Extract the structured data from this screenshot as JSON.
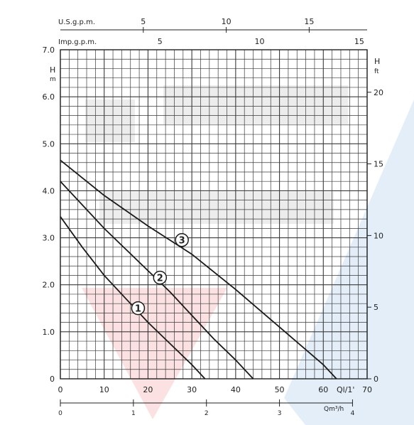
{
  "chart_data": {
    "type": "line",
    "title": "",
    "x_axis": {
      "label": "Ql/1'",
      "min": 0,
      "max": 70,
      "ticks": [
        0,
        10,
        20,
        30,
        40,
        50,
        60,
        70
      ]
    },
    "y_axis_left": {
      "label_top": "H",
      "label_unit": "m",
      "min": 0,
      "max": 7,
      "ticks": [
        "0",
        "1.0",
        "2.0",
        "3.0",
        "4.0",
        "5.0",
        "6.0",
        "7.0"
      ]
    },
    "y_axis_right": {
      "label_top": "H",
      "label_unit": "ft",
      "ticks": [
        0,
        5,
        10,
        15,
        20
      ]
    },
    "top_axis_us": {
      "label": "U.S.g.p.m.",
      "ticks": [
        5,
        10,
        15
      ]
    },
    "top_axis_imp": {
      "label": "Imp.g.p.m.",
      "ticks": [
        5,
        10,
        15
      ]
    },
    "bottom_axis_m3h": {
      "label": "Qm³/h",
      "ticks": [
        0,
        1,
        2,
        3,
        4
      ]
    },
    "grid": true,
    "series": [
      {
        "name": "1",
        "x": [
          0,
          5,
          10,
          15,
          20,
          25,
          30,
          33
        ],
        "y": [
          3.45,
          2.8,
          2.2,
          1.7,
          1.2,
          0.75,
          0.3,
          0.0
        ]
      },
      {
        "name": "2",
        "x": [
          0,
          5,
          10,
          15,
          20,
          25,
          30,
          35,
          40,
          44
        ],
        "y": [
          4.2,
          3.7,
          3.2,
          2.75,
          2.3,
          1.85,
          1.35,
          0.85,
          0.4,
          0.0
        ]
      },
      {
        "name": "3",
        "x": [
          0,
          10,
          20,
          30,
          40,
          50,
          60,
          63
        ],
        "y": [
          4.65,
          3.9,
          3.25,
          2.65,
          1.9,
          1.1,
          0.3,
          0.0
        ]
      }
    ],
    "colors": {
      "grid": "#3a3a3a",
      "curve": "#1a1a1a"
    }
  }
}
